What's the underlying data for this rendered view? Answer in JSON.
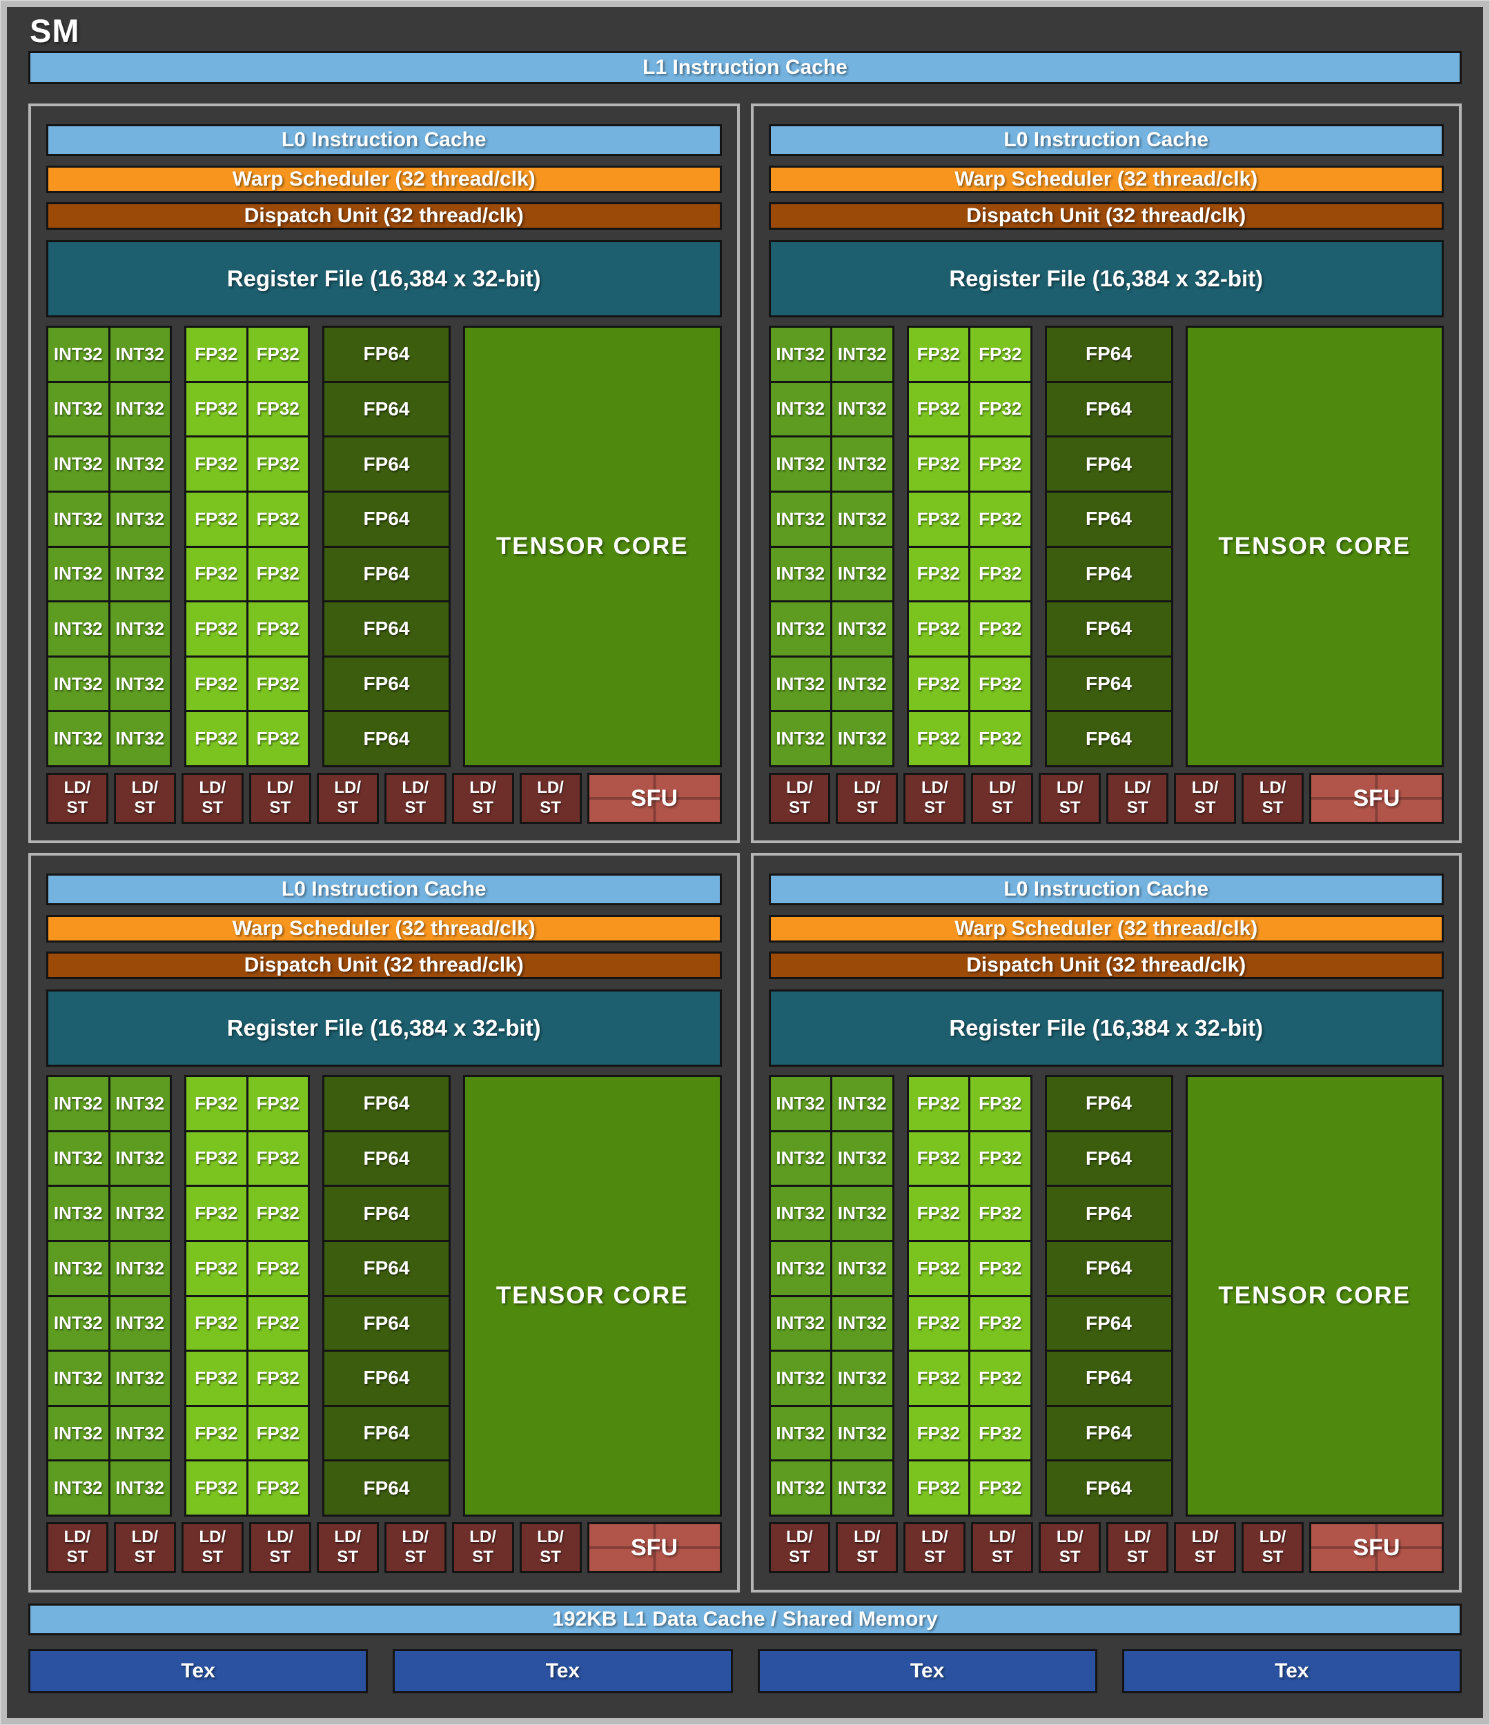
{
  "title": "SM",
  "l1_instruction_cache": "L1 Instruction Cache",
  "l1_data_cache": "192KB L1 Data Cache / Shared Memory",
  "tex": [
    "Tex",
    "Tex",
    "Tex",
    "Tex"
  ],
  "partition_count": 4,
  "partition": {
    "l0_instruction_cache": "L0 Instruction Cache",
    "warp_scheduler": "Warp Scheduler (32 thread/clk)",
    "dispatch_unit": "Dispatch Unit (32 thread/clk)",
    "register_file": "Register File (16,384 x 32-bit)",
    "core_grid": {
      "rows": 8,
      "int32": "INT32",
      "fp32": "FP32",
      "fp64": "FP64",
      "tensor_core": "TENSOR CORE"
    },
    "ldst": {
      "count": 8,
      "line1": "LD/",
      "line2": "ST"
    },
    "sfu": "SFU"
  },
  "colors": {
    "bg": "#3a3a3a",
    "frame_border": "#bcbcbc",
    "quadrant_border": "#b5b5b5",
    "cache_blue": "#74b3e0",
    "warp_orange": "#f8951e",
    "dispatch_brown": "#9c4a08",
    "register_teal": "#1d5f6f",
    "int32_green": "#5d9c20",
    "fp32_green": "#7bc420",
    "fp64_green": "#3c5c0e",
    "tensor_green": "#4f8a0e",
    "ldst_maroon": "#6e2f2a",
    "sfu_red": "#b1544a",
    "tex_blue": "#2a52a0"
  }
}
